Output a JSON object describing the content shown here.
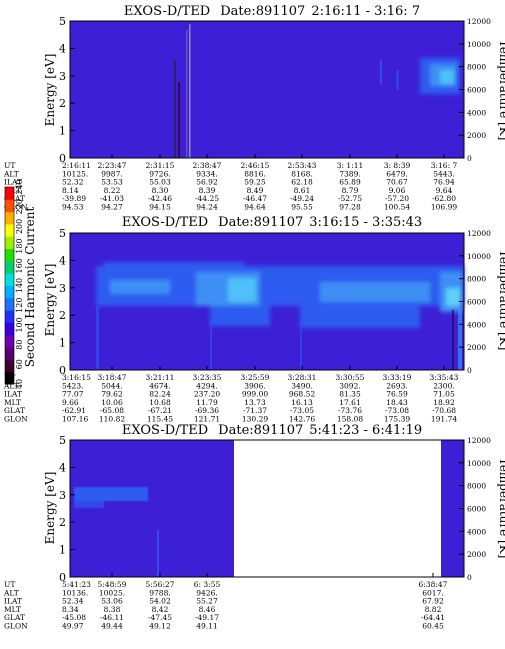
{
  "chart_data": [
    {
      "type": "heatmap",
      "title": "EXOS-D/TED",
      "date_label": "Date:891107",
      "time_range": "2:16:11 - 3:16: 7",
      "ylabel": "Energy [eV]",
      "y2label": "Temperature [K]",
      "ylim": [
        0,
        5
      ],
      "yticks": [
        "0",
        "1",
        "2",
        "3",
        "4",
        "5"
      ],
      "y2lim": [
        0,
        12000
      ],
      "y2ticks": [
        "0",
        "2000",
        "4000",
        "6000",
        "8000",
        "10000",
        "12000"
      ],
      "ephemeris_labels": [
        "UT",
        "ALT",
        "ILAT",
        "MLT",
        "GLAT",
        "GLON"
      ],
      "ephemeris": [
        [
          "2:16:11",
          "2:23:47",
          "2:31:15",
          "2:38:47",
          "2:46:15",
          "2:53:43",
          "3: 1:11",
          "3: 8:39",
          "3:16: 7"
        ],
        [
          "10125.",
          "9987.",
          "9726.",
          "9334.",
          "8816.",
          "8168.",
          "7389.",
          "6479.",
          "5443."
        ],
        [
          "52.32",
          "53.53",
          "55.03",
          "56.92",
          "59.25",
          "62.18",
          "65.89",
          "70.67",
          "76.94"
        ],
        [
          "8.14",
          "8.22",
          "8.30",
          "8.39",
          "8.49",
          "8.61",
          "8.79",
          "9.06",
          "9.64"
        ],
        [
          "-39.89",
          "-41.03",
          "-42.46",
          "-44.25",
          "-46.47",
          "-49.24",
          "-52.75",
          "-57.20",
          "-62.80"
        ],
        [
          "94.53",
          "94.27",
          "94.15",
          "94.24",
          "94.64",
          "95.55",
          "97.28",
          "100.54",
          "106.99"
        ]
      ]
    },
    {
      "type": "heatmap",
      "title": "EXOS-D/TED",
      "date_label": "Date:891107",
      "time_range": "3:16:15 - 3:35:43",
      "ylabel": "Energy [eV]",
      "y2label": "Temperature [K]",
      "ylim": [
        0,
        5
      ],
      "yticks": [
        "0",
        "1",
        "2",
        "3",
        "4",
        "5"
      ],
      "y2lim": [
        0,
        12000
      ],
      "y2ticks": [
        "0",
        "2000",
        "4000",
        "6000",
        "8000",
        "10000",
        "12000"
      ],
      "ephemeris_labels": [
        "UT",
        "ALT",
        "ILAT",
        "MLT",
        "GLAT",
        "GLON"
      ],
      "ephemeris": [
        [
          "3:16:15",
          "3:18:47",
          "3:21:11",
          "3:23:35",
          "3:25:59",
          "3:28:31",
          "3:30:55",
          "3:33:19",
          "3:35:43"
        ],
        [
          "5423.",
          "5044.",
          "4674.",
          "4294.",
          "3906.",
          "3490.",
          "3092.",
          "2693.",
          "2300."
        ],
        [
          "77.07",
          "79.62",
          "82.24",
          "237.20",
          "999.00",
          "968.52",
          "81.35",
          "76.59",
          "71.05"
        ],
        [
          "9.66",
          "10.06",
          "10.68",
          "11.79",
          "13.73",
          "16.13",
          "17.61",
          "18.43",
          "18.92"
        ],
        [
          "-62.91",
          "-65.08",
          "-67.21",
          "-69.36",
          "-71.37",
          "-73.05",
          "-73.76",
          "-73.08",
          "-70.68"
        ],
        [
          "107.16",
          "110.82",
          "115.45",
          "121.71",
          "130.29",
          "142.76",
          "158.08",
          "175.39",
          "191.74"
        ]
      ]
    },
    {
      "type": "heatmap",
      "title": "EXOS-D/TED",
      "date_label": "Date:891107",
      "time_range": "5:41:23 - 6:41:19",
      "ylabel": "Energy [eV]",
      "y2label": "Temperature [K]",
      "ylim": [
        0,
        5
      ],
      "yticks": [
        "0",
        "1",
        "2",
        "3",
        "4",
        "5"
      ],
      "y2lim": [
        0,
        12000
      ],
      "y2ticks": [
        "0",
        "2000",
        "4000",
        "6000",
        "8000",
        "10000",
        "12000"
      ],
      "ephemeris_labels": [
        "UT",
        "ALT",
        "ILAT",
        "MLT",
        "GLAT",
        "GLON"
      ],
      "ephemeris": [
        [
          "5:41:23",
          "5:48:59",
          "5:56:27",
          "6: 3:55",
          "6:38:47"
        ],
        [
          "10136.",
          "10025.",
          "9788.",
          "9426.",
          "6017."
        ],
        [
          "52.34",
          "53.06",
          "54.02",
          "55.27",
          "67.92"
        ],
        [
          "8.34",
          "8.38",
          "8.42",
          "8.46",
          "8.82"
        ],
        [
          "-45.08",
          "-46.11",
          "-47.45",
          "-49.17",
          "-64.41"
        ],
        [
          "49.97",
          "49.44",
          "49.12",
          "49.11",
          "60.45"
        ]
      ]
    }
  ],
  "colorbar": {
    "label": "Second Harmonic Current",
    "ticks": [
      "40",
      "60",
      "80",
      "100",
      "120",
      "140",
      "160",
      "180",
      "200",
      "220",
      "240"
    ],
    "colors": [
      "#000000",
      "#3a0033",
      "#5a0070",
      "#7000b0",
      "#3a00e0",
      "#2030ff",
      "#2070ff",
      "#00b0ff",
      "#00e0e0",
      "#00d070",
      "#20e000",
      "#a0f000",
      "#ffff00",
      "#ffb000",
      "#ff5000",
      "#ff0000"
    ]
  },
  "colors": {
    "background": "#3d1fd6",
    "mid": "#2f5cf0",
    "bright": "#3d8ff5"
  }
}
